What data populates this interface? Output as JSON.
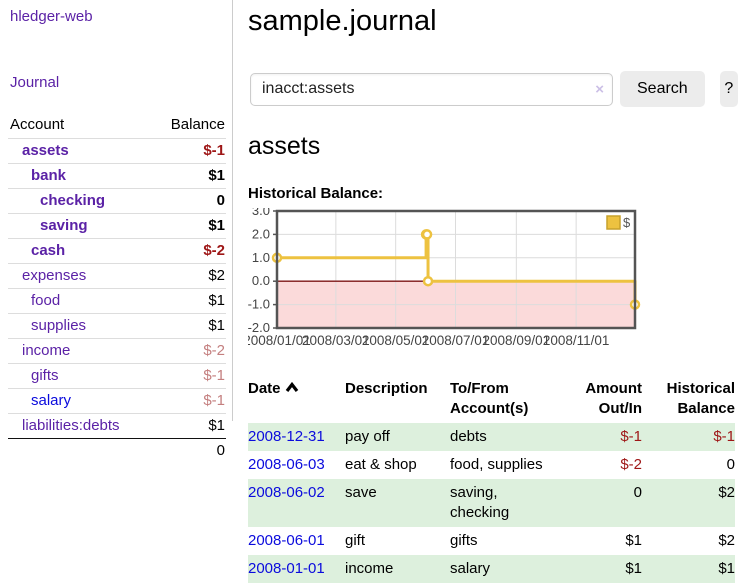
{
  "sidebar": {
    "brand": "hledger-web",
    "journal_link": "Journal",
    "accounts_table": {
      "headers": {
        "account": "Account",
        "balance": "Balance"
      },
      "rows": [
        {
          "account": "assets",
          "depth": 1,
          "bold": true,
          "balance": "$-1",
          "balance_style": "neg-strong"
        },
        {
          "account": "bank",
          "depth": 2,
          "bold": true,
          "balance": "$1",
          "balance_style": "pos"
        },
        {
          "account": "checking",
          "depth": 3,
          "bold": true,
          "balance": "0",
          "balance_style": "pos"
        },
        {
          "account": "saving",
          "depth": 3,
          "bold": true,
          "balance": "$1",
          "balance_style": "pos"
        },
        {
          "account": "cash",
          "depth": 2,
          "bold": true,
          "balance": "$-2",
          "balance_style": "neg-strong"
        },
        {
          "account": "expenses",
          "depth": 1,
          "bold": false,
          "balance": "$2",
          "balance_style": "pos"
        },
        {
          "account": "food",
          "depth": 2,
          "bold": false,
          "balance": "$1",
          "balance_style": "pos"
        },
        {
          "account": "supplies",
          "depth": 2,
          "bold": false,
          "balance": "$1",
          "balance_style": "pos"
        },
        {
          "account": "income",
          "depth": 1,
          "bold": false,
          "balance": "$-2",
          "balance_style": "neg-soft"
        },
        {
          "account": "gifts",
          "depth": 2,
          "bold": false,
          "balance": "$-1",
          "balance_style": "neg-soft"
        },
        {
          "account": "salary",
          "depth": 2,
          "bold": false,
          "balance": "$-1",
          "balance_style": "neg-soft",
          "link_color": "blue"
        },
        {
          "account": "liabilities:debts",
          "depth": 1,
          "bold": false,
          "balance": "$1",
          "balance_style": "pos"
        }
      ],
      "total": "0"
    }
  },
  "header": {
    "title": "sample.journal"
  },
  "search": {
    "value": "inacct:assets",
    "clear_icon": "×",
    "button_label": "Search",
    "help_label": "?"
  },
  "account_page": {
    "heading": "assets",
    "chart_label": "Historical Balance:"
  },
  "chart_data": {
    "type": "line",
    "step": true,
    "title": "Historical Balance:",
    "series": [
      {
        "name": "$",
        "color": "#edc240",
        "points": [
          {
            "date": "2008-01-01",
            "value": 1
          },
          {
            "date": "2008-06-01",
            "value": 2
          },
          {
            "date": "2008-06-02",
            "value": 2
          },
          {
            "date": "2008-06-03",
            "value": 0
          },
          {
            "date": "2008-12-31",
            "value": -1
          }
        ]
      }
    ],
    "x_range": [
      "2008-01-01",
      "2008-12-31"
    ],
    "ylim": [
      -2,
      3
    ],
    "y_ticks": [
      3.0,
      2.0,
      1.0,
      0.0,
      -1.0,
      -2.0
    ],
    "x_ticks": [
      {
        "date": "2008-01-01",
        "label": "2008/01/01"
      },
      {
        "date": "2008-03-01",
        "label": "2008/03/01"
      },
      {
        "date": "2008-05-01",
        "label": "2008/05/01"
      },
      {
        "date": "2008-07-01",
        "label": "2008/07/01"
      },
      {
        "date": "2008-09-01",
        "label": "2008/09/01"
      },
      {
        "date": "2008-11-01",
        "label": "2008/11/01"
      }
    ],
    "grid": true,
    "legend": {
      "label": "$",
      "position": "top-right"
    },
    "colors": {
      "line": "#edc240",
      "marker_fill": "#ffffff",
      "negative_fill": "#fbdada",
      "zero_line": "#7e1515",
      "border": "#545454",
      "gridline": "#dcdcdc",
      "tick_text": "#444444",
      "legend_box_border": "#c7a12c"
    }
  },
  "register_table": {
    "headers": {
      "date": "Date",
      "description": "Description",
      "accounts": "To/From Account(s)",
      "amount": "Amount Out/In",
      "balance": "Historical Balance"
    },
    "rows": [
      {
        "date": "2008-12-31",
        "description": "pay off",
        "accounts": "debts",
        "amount": "$-1",
        "balance": "$-1"
      },
      {
        "date": "2008-06-03",
        "description": "eat & shop",
        "accounts": "food, supplies",
        "amount": "$-2",
        "balance": "0"
      },
      {
        "date": "2008-06-02",
        "description": "save",
        "accounts": "saving, checking",
        "amount": "0",
        "balance": "$2"
      },
      {
        "date": "2008-06-01",
        "description": "gift",
        "accounts": "gifts",
        "amount": "$1",
        "balance": "$2"
      },
      {
        "date": "2008-01-01",
        "description": "income",
        "accounts": "salary",
        "amount": "$1",
        "balance": "$1"
      }
    ]
  }
}
